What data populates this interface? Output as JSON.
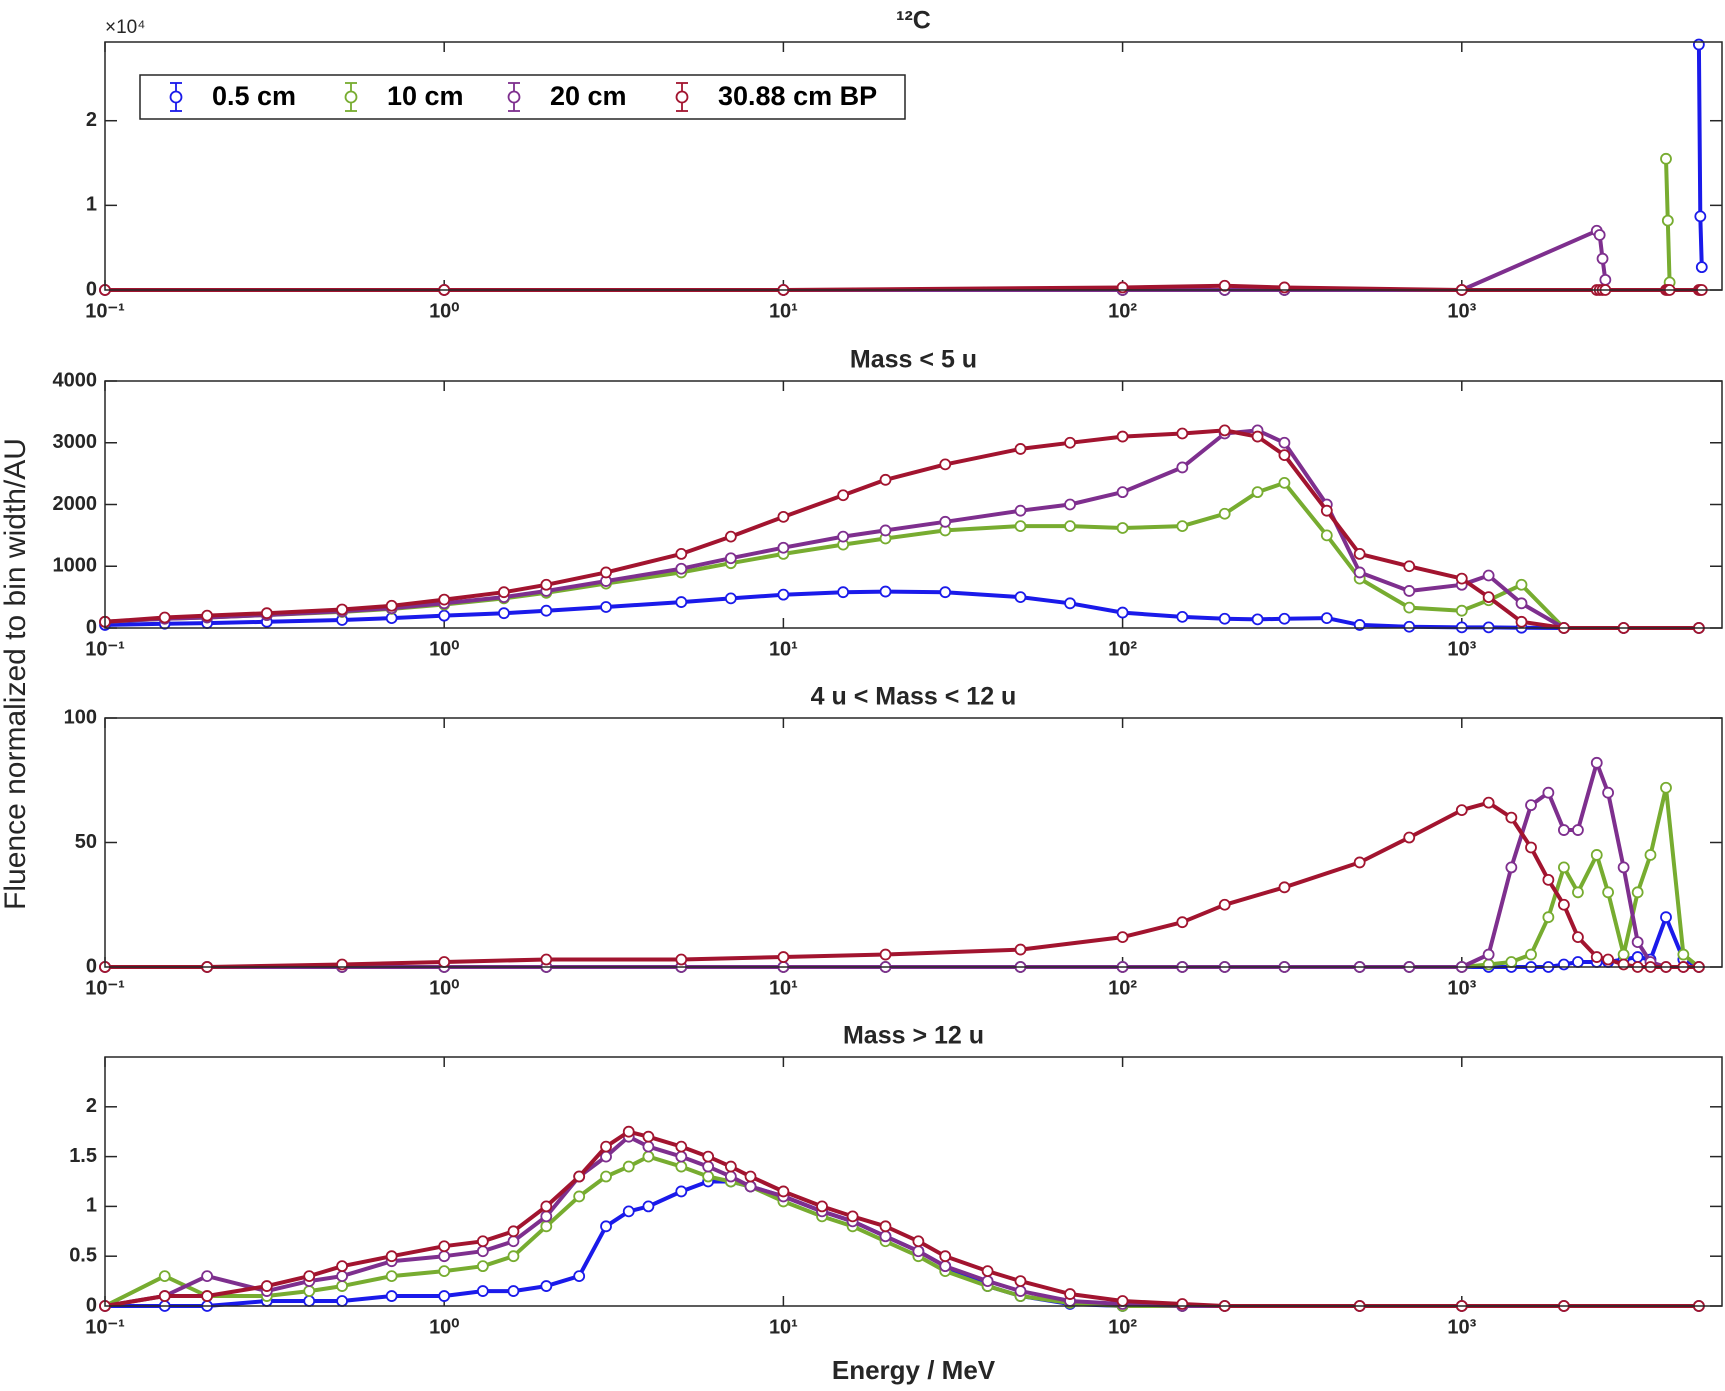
{
  "chart_data": [
    {
      "type": "line",
      "title": "¹²C",
      "y_multiplier": "×10⁴",
      "xscale": "log",
      "xlim": [
        0.1,
        5850
      ],
      "ylim": [
        0,
        29300
      ],
      "xticks": [
        {
          "value": 0.1,
          "label": "10⁻¹"
        },
        {
          "value": 1,
          "label": "10⁰"
        },
        {
          "value": 10,
          "label": "10¹"
        },
        {
          "value": 100,
          "label": "10²"
        },
        {
          "value": 1000,
          "label": "10³"
        }
      ],
      "yticks": [
        0,
        {
          "value": 10000,
          "label": "1"
        },
        {
          "value": 20000,
          "label": "2"
        }
      ],
      "legend": "upper left",
      "x": [
        0.1,
        1,
        10,
        100,
        200,
        300,
        1000,
        2500,
        2550,
        2600,
        2650,
        4000,
        4050,
        4100,
        5000,
        5050,
        5100
      ],
      "series": [
        {
          "name": "0.5 cm",
          "color": "#1a1aea",
          "values": [
            0,
            0,
            0,
            0,
            0,
            0,
            0,
            null,
            null,
            null,
            null,
            null,
            null,
            null,
            29000,
            8700,
            2700
          ]
        },
        {
          "name": "10 cm",
          "color": "#77ac30",
          "values": [
            0,
            0,
            0,
            0,
            0,
            0,
            0,
            null,
            null,
            null,
            null,
            15500,
            8200,
            900,
            null,
            null,
            null
          ]
        },
        {
          "name": "20 cm",
          "color": "#7e2f8e",
          "values": [
            0,
            0,
            0,
            0,
            0,
            0,
            0,
            7000,
            6500,
            3700,
            1200,
            null,
            null,
            null,
            null,
            null,
            null
          ]
        },
        {
          "name": "30.88 cm BP",
          "color": "#a2142f",
          "values": [
            0,
            0,
            0,
            300,
            500,
            300,
            0,
            0,
            0,
            0,
            0,
            0,
            0,
            0,
            0,
            0,
            0
          ]
        }
      ]
    },
    {
      "type": "line",
      "title": "Mass < 5 u",
      "xscale": "log",
      "xlim": [
        0.1,
        5850
      ],
      "ylim": [
        0,
        4000
      ],
      "xticks": [
        {
          "value": 0.1,
          "label": "10⁻¹"
        },
        {
          "value": 1,
          "label": "10⁰"
        },
        {
          "value": 10,
          "label": "10¹"
        },
        {
          "value": 100,
          "label": "10²"
        },
        {
          "value": 1000,
          "label": "10³"
        }
      ],
      "yticks": [
        0,
        1000,
        2000,
        3000,
        4000
      ],
      "x": [
        0.1,
        0.15,
        0.2,
        0.3,
        0.5,
        0.7,
        1,
        1.5,
        2,
        3,
        5,
        7,
        10,
        15,
        20,
        30,
        50,
        70,
        100,
        150,
        200,
        250,
        300,
        400,
        500,
        700,
        1000,
        1200,
        1500,
        2000,
        3000,
        5000
      ],
      "series": [
        {
          "color": "#1a1aea",
          "values": [
            50,
            70,
            80,
            100,
            130,
            160,
            200,
            240,
            280,
            340,
            420,
            480,
            540,
            580,
            590,
            580,
            500,
            400,
            250,
            180,
            150,
            140,
            150,
            160,
            50,
            20,
            10,
            10,
            5,
            0,
            0,
            0
          ]
        },
        {
          "color": "#77ac30",
          "values": [
            100,
            150,
            170,
            210,
            260,
            310,
            380,
            480,
            570,
            720,
            900,
            1050,
            1200,
            1350,
            1450,
            1580,
            1650,
            1650,
            1620,
            1650,
            1850,
            2200,
            2350,
            1500,
            800,
            330,
            280,
            450,
            700,
            0,
            0,
            0
          ]
        },
        {
          "color": "#7e2f8e",
          "values": [
            100,
            150,
            170,
            210,
            270,
            320,
            400,
            500,
            600,
            760,
            960,
            1130,
            1300,
            1480,
            1580,
            1720,
            1900,
            2000,
            2200,
            2600,
            3150,
            3200,
            3000,
            2000,
            900,
            600,
            700,
            850,
            400,
            0,
            0,
            0
          ]
        },
        {
          "color": "#a2142f",
          "values": [
            100,
            170,
            200,
            240,
            300,
            360,
            460,
            580,
            700,
            900,
            1200,
            1480,
            1800,
            2150,
            2400,
            2650,
            2900,
            3000,
            3100,
            3150,
            3200,
            3100,
            2800,
            1900,
            1200,
            1000,
            800,
            500,
            100,
            0,
            0,
            0
          ]
        }
      ]
    },
    {
      "type": "line",
      "title": "4 u < Mass < 12 u",
      "ylabel": "Fluence normalized to bin width/AU",
      "xscale": "log",
      "xlim": [
        0.1,
        5850
      ],
      "ylim": [
        0,
        100
      ],
      "xticks": [
        {
          "value": 0.1,
          "label": "10⁻¹"
        },
        {
          "value": 1,
          "label": "10⁰"
        },
        {
          "value": 10,
          "label": "10¹"
        },
        {
          "value": 100,
          "label": "10²"
        },
        {
          "value": 1000,
          "label": "10³"
        }
      ],
      "yticks": [
        0,
        50,
        100
      ],
      "x": [
        0.1,
        0.2,
        0.5,
        1,
        2,
        5,
        10,
        20,
        50,
        100,
        150,
        200,
        300,
        500,
        700,
        1000,
        1200,
        1400,
        1600,
        1800,
        2000,
        2200,
        2500,
        2700,
        3000,
        3300,
        3600,
        4000,
        4500,
        5000
      ],
      "series": [
        {
          "color": "#1a1aea",
          "values": [
            0,
            0,
            0,
            0,
            0,
            0,
            0,
            0,
            0,
            0,
            0,
            0,
            0,
            0,
            0,
            0,
            0,
            0,
            0,
            0,
            1,
            2,
            2,
            2,
            3,
            4,
            3,
            20,
            3,
            0
          ]
        },
        {
          "color": "#77ac30",
          "values": [
            0,
            0,
            0,
            0,
            0,
            0,
            0,
            0,
            0,
            0,
            0,
            0,
            0,
            0,
            0,
            0,
            1,
            2,
            5,
            20,
            40,
            30,
            45,
            30,
            5,
            30,
            45,
            72,
            5,
            0
          ]
        },
        {
          "color": "#7e2f8e",
          "values": [
            0,
            0,
            0,
            0,
            0,
            0,
            0,
            0,
            0,
            0,
            0,
            0,
            0,
            0,
            0,
            0,
            5,
            40,
            65,
            70,
            55,
            55,
            82,
            70,
            40,
            10,
            2,
            0,
            0,
            0
          ]
        },
        {
          "color": "#a2142f",
          "values": [
            0,
            0,
            1,
            2,
            3,
            3,
            4,
            5,
            7,
            12,
            18,
            25,
            32,
            42,
            52,
            63,
            66,
            60,
            48,
            35,
            25,
            12,
            4,
            3,
            1,
            0,
            0,
            0,
            0,
            0
          ]
        }
      ]
    },
    {
      "type": "line",
      "title": "Mass > 12 u",
      "xlabel": "Energy / MeV",
      "xscale": "log",
      "xlim": [
        0.1,
        5850
      ],
      "ylim": [
        0,
        2.5
      ],
      "xticks": [
        {
          "value": 0.1,
          "label": "10⁻¹"
        },
        {
          "value": 1,
          "label": "10⁰"
        },
        {
          "value": 10,
          "label": "10¹"
        },
        {
          "value": 100,
          "label": "10²"
        },
        {
          "value": 1000,
          "label": "10³"
        }
      ],
      "yticks": [
        0,
        0.5,
        1,
        1.5,
        2
      ],
      "x": [
        0.1,
        0.15,
        0.2,
        0.3,
        0.4,
        0.5,
        0.7,
        1,
        1.3,
        1.6,
        2,
        2.5,
        3,
        3.5,
        4,
        5,
        6,
        7,
        8,
        10,
        13,
        16,
        20,
        25,
        30,
        40,
        50,
        70,
        100,
        150,
        200,
        500,
        1000,
        2000,
        5000
      ],
      "series": [
        {
          "color": "#1a1aea",
          "values": [
            0,
            0,
            0,
            0.05,
            0.05,
            0.05,
            0.1,
            0.1,
            0.15,
            0.15,
            0.2,
            0.3,
            0.8,
            0.95,
            1,
            1.15,
            1.25,
            1.25,
            1.2,
            1.1,
            0.95,
            0.85,
            0.7,
            0.55,
            0.4,
            0.2,
            0.1,
            0.02,
            0,
            0,
            0,
            0,
            0,
            0,
            0
          ]
        },
        {
          "color": "#77ac30",
          "values": [
            0,
            0.3,
            0.1,
            0.1,
            0.15,
            0.2,
            0.3,
            0.35,
            0.4,
            0.5,
            0.8,
            1.1,
            1.3,
            1.4,
            1.5,
            1.4,
            1.3,
            1.25,
            1.2,
            1.05,
            0.9,
            0.8,
            0.65,
            0.5,
            0.35,
            0.2,
            0.1,
            0.03,
            0,
            0,
            0,
            0,
            0,
            0,
            0
          ]
        },
        {
          "color": "#7e2f8e",
          "values": [
            0,
            0.1,
            0.3,
            0.15,
            0.25,
            0.3,
            0.45,
            0.5,
            0.55,
            0.65,
            0.9,
            1.3,
            1.5,
            1.7,
            1.6,
            1.5,
            1.4,
            1.3,
            1.2,
            1.1,
            0.95,
            0.85,
            0.7,
            0.55,
            0.4,
            0.25,
            0.15,
            0.05,
            0.02,
            0,
            0,
            0,
            0,
            0,
            0
          ]
        },
        {
          "color": "#a2142f",
          "values": [
            0,
            0.1,
            0.1,
            0.2,
            0.3,
            0.4,
            0.5,
            0.6,
            0.65,
            0.75,
            1,
            1.3,
            1.6,
            1.75,
            1.7,
            1.6,
            1.5,
            1.4,
            1.3,
            1.15,
            1,
            0.9,
            0.8,
            0.65,
            0.5,
            0.35,
            0.25,
            0.12,
            0.05,
            0.02,
            0,
            0,
            0,
            0,
            0
          ]
        }
      ]
    }
  ]
}
